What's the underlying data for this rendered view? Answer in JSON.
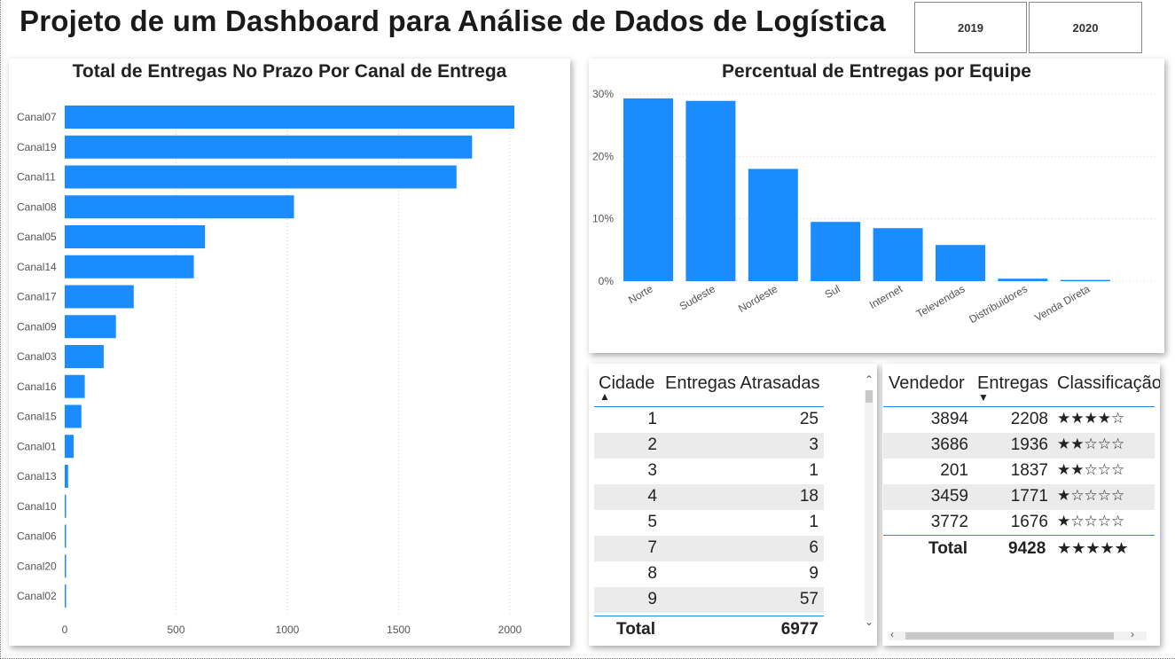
{
  "header": {
    "title": "Projeto de um Dashboard para Análise de Dados de Logística",
    "years": [
      "2019",
      "2020"
    ]
  },
  "colors": {
    "bar": "#1a8cff",
    "accent_line": "#1f8cf2",
    "row_alt": "#ebebeb"
  },
  "chart_data": [
    {
      "type": "bar",
      "orientation": "horizontal",
      "title": "Total de Entregas No Prazo Por Canal de Entrega",
      "categories": [
        "Canal07",
        "Canal19",
        "Canal11",
        "Canal08",
        "Canal05",
        "Canal14",
        "Canal17",
        "Canal09",
        "Canal03",
        "Canal16",
        "Canal15",
        "Canal01",
        "Canal13",
        "Canal10",
        "Canal06",
        "Canal20",
        "Canal02"
      ],
      "values": [
        2020,
        1830,
        1760,
        1030,
        630,
        580,
        310,
        230,
        175,
        90,
        75,
        40,
        15,
        6,
        5,
        4,
        3
      ],
      "xlim": [
        0,
        2100
      ],
      "xticks": [
        "0",
        "500",
        "1000",
        "1500",
        "2000"
      ],
      "xtick_values": [
        0,
        500,
        1000,
        1500,
        2000
      ],
      "grid": "vertical-dotted"
    },
    {
      "type": "bar",
      "title": "Percentual de Entregas por Equipe",
      "categories": [
        "Norte",
        "Sudeste",
        "Nordeste",
        "Sul",
        "Internet",
        "Televendas",
        "Distribuidores",
        "Venda Direta"
      ],
      "values": [
        29.3,
        28.9,
        18.0,
        9.5,
        8.5,
        5.8,
        0.4,
        0.2
      ],
      "unit": "%",
      "ylim": [
        0,
        30
      ],
      "yticks": [
        "0%",
        "10%",
        "20%",
        "30%"
      ],
      "ytick_values": [
        0,
        10,
        20,
        30
      ],
      "grid": "horizontal-dotted"
    }
  ],
  "table_cidade": {
    "headers": [
      "Cidade",
      "Entregas Atrasadas"
    ],
    "sort_indicator": "▲",
    "rows": [
      [
        "1",
        "25"
      ],
      [
        "2",
        "3"
      ],
      [
        "3",
        "1"
      ],
      [
        "4",
        "18"
      ],
      [
        "5",
        "1"
      ],
      [
        "7",
        "6"
      ],
      [
        "8",
        "9"
      ],
      [
        "9",
        "57"
      ]
    ],
    "total_label": "Total",
    "total_value": "6977"
  },
  "table_vendedor": {
    "headers": [
      "Vendedor",
      "Entregas",
      "Classificação"
    ],
    "sort_indicator": "▼",
    "rows": [
      [
        "3894",
        "2208",
        "★★★★☆"
      ],
      [
        "3686",
        "1936",
        "★★☆☆☆"
      ],
      [
        "201",
        "1837",
        "★★☆☆☆"
      ],
      [
        "3459",
        "1771",
        "★☆☆☆☆"
      ],
      [
        "3772",
        "1676",
        "★☆☆☆☆"
      ]
    ],
    "total_label": "Total",
    "total_entregas": "9428",
    "total_stars": "★★★★★"
  }
}
